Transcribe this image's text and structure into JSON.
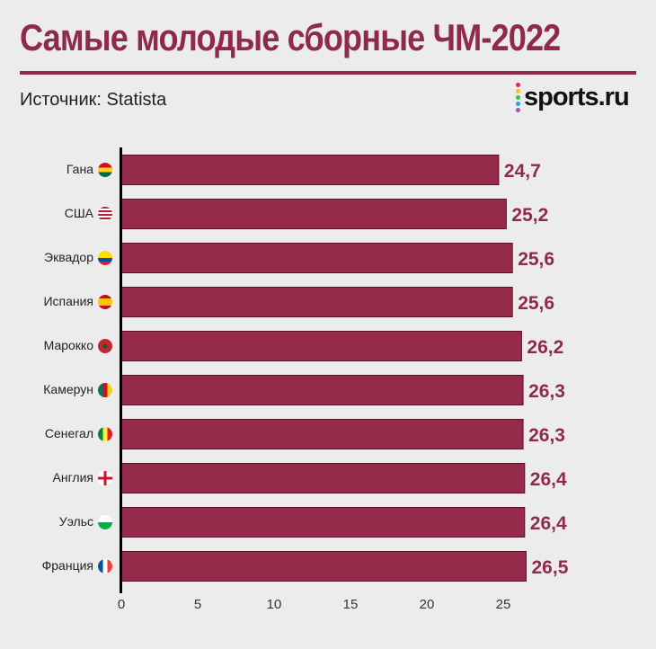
{
  "title": "Самые молодые сборные ЧМ-2022",
  "source": "Источник: Statista",
  "logo": {
    "text": "sports.ru",
    "dot_colors": [
      "#e0245e",
      "#f5c518",
      "#2ecc40",
      "#1da1f2",
      "#9b59b6"
    ]
  },
  "colors": {
    "bar": "#952a4a",
    "bar_border": "#5a1027",
    "value": "#8f2a4c",
    "title": "#8f2a4c"
  },
  "chart_data": {
    "type": "bar",
    "orientation": "horizontal",
    "categories": [
      "Гана",
      "США",
      "Эквадор",
      "Испания",
      "Марокко",
      "Камерун",
      "Сенегал",
      "Англия",
      "Уэльс",
      "Франция"
    ],
    "flags": [
      "ghana",
      "usa",
      "ecuador",
      "spain",
      "morocco",
      "cameroon",
      "senegal",
      "england",
      "wales",
      "france"
    ],
    "values": [
      24.7,
      25.2,
      25.6,
      25.6,
      26.2,
      26.3,
      26.3,
      26.4,
      26.4,
      26.5
    ],
    "value_labels": [
      "24,7",
      "25,2",
      "25,6",
      "25,6",
      "26,2",
      "26,3",
      "26,3",
      "26,4",
      "26,4",
      "26,5"
    ],
    "xticks": [
      "0",
      "5",
      "10",
      "15",
      "20",
      "25"
    ],
    "xlim": [
      0,
      26.5
    ],
    "grid": false
  }
}
